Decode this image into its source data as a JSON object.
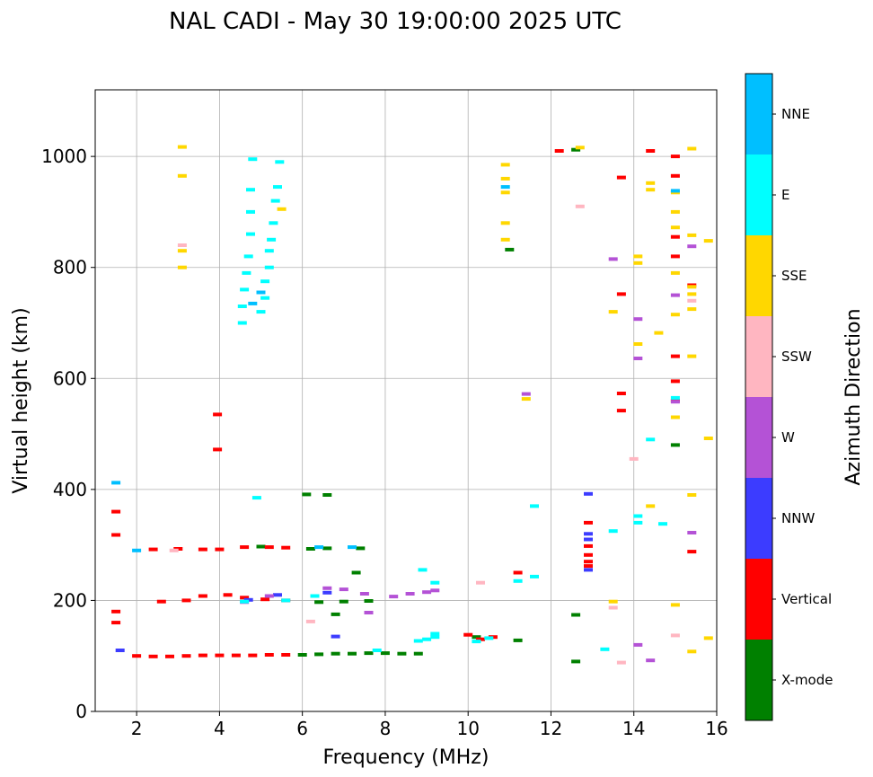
{
  "chart_data": {
    "type": "scatter",
    "title": "NAL CADI - May 30 19:00:00 2025 UTC",
    "xlabel": "Frequency (MHz)",
    "ylabel": "Virtual height (km)",
    "xlim": [
      1.0,
      16.0
    ],
    "ylim": [
      0,
      1120
    ],
    "xticks": [
      2,
      4,
      6,
      8,
      10,
      12,
      14,
      16
    ],
    "yticks": [
      0,
      200,
      400,
      600,
      800,
      1000
    ],
    "grid": true,
    "colorbar": {
      "label": "Azimuth Direction",
      "categories": [
        {
          "name": "X-mode",
          "color": "#008000"
        },
        {
          "name": "Vertical",
          "color": "#ff0000"
        },
        {
          "name": "NNW",
          "color": "#3c3cff"
        },
        {
          "name": "W",
          "color": "#b452d6"
        },
        {
          "name": "SSW",
          "color": "#ffb6c1"
        },
        {
          "name": "SSE",
          "color": "#ffd700"
        },
        {
          "name": "E",
          "color": "#00ffff"
        },
        {
          "name": "NNE",
          "color": "#00bfff"
        }
      ]
    },
    "series": [
      {
        "name": "X-mode",
        "points": [
          [
            6.0,
            102
          ],
          [
            6.4,
            103
          ],
          [
            6.8,
            104
          ],
          [
            7.2,
            104
          ],
          [
            7.6,
            105
          ],
          [
            8.0,
            105
          ],
          [
            8.4,
            104
          ],
          [
            8.8,
            104
          ],
          [
            6.2,
            293
          ],
          [
            6.6,
            294
          ],
          [
            7.4,
            294
          ],
          [
            6.4,
            197
          ],
          [
            7.0,
            198
          ],
          [
            7.6,
            199
          ],
          [
            6.6,
            390
          ],
          [
            6.1,
            391
          ],
          [
            11.0,
            832
          ],
          [
            12.6,
            1012
          ],
          [
            12.6,
            174
          ],
          [
            12.6,
            90
          ],
          [
            10.2,
            134
          ],
          [
            11.2,
            128
          ],
          [
            15.0,
            480
          ],
          [
            7.3,
            250
          ],
          [
            6.8,
            175
          ],
          [
            5.0,
            297
          ]
        ]
      },
      {
        "name": "Vertical",
        "points": [
          [
            2.0,
            100
          ],
          [
            2.4,
            99
          ],
          [
            2.8,
            99
          ],
          [
            3.2,
            100
          ],
          [
            3.6,
            101
          ],
          [
            4.0,
            101
          ],
          [
            4.4,
            101
          ],
          [
            4.8,
            101
          ],
          [
            5.2,
            102
          ],
          [
            5.6,
            102
          ],
          [
            2.4,
            292
          ],
          [
            3.0,
            293
          ],
          [
            3.6,
            292
          ],
          [
            4.0,
            292
          ],
          [
            4.6,
            296
          ],
          [
            5.2,
            296
          ],
          [
            5.6,
            295
          ],
          [
            2.6,
            198
          ],
          [
            3.2,
            200
          ],
          [
            3.6,
            208
          ],
          [
            4.2,
            210
          ],
          [
            4.6,
            205
          ],
          [
            5.1,
            202
          ],
          [
            5.6,
            200
          ],
          [
            1.5,
            360
          ],
          [
            1.5,
            318
          ],
          [
            1.5,
            180
          ],
          [
            1.5,
            160
          ],
          [
            3.95,
            535
          ],
          [
            3.95,
            472
          ],
          [
            10.0,
            138
          ],
          [
            10.3,
            130
          ],
          [
            10.6,
            134
          ],
          [
            11.2,
            250
          ],
          [
            12.9,
            340
          ],
          [
            12.9,
            298
          ],
          [
            12.9,
            282
          ],
          [
            12.9,
            270
          ],
          [
            12.9,
            262
          ],
          [
            13.7,
            752
          ],
          [
            13.7,
            573
          ],
          [
            13.7,
            542
          ],
          [
            13.7,
            962
          ],
          [
            14.4,
            1010
          ],
          [
            15.0,
            1000
          ],
          [
            15.0,
            965
          ],
          [
            15.0,
            855
          ],
          [
            15.0,
            820
          ],
          [
            15.0,
            640
          ],
          [
            15.0,
            595
          ],
          [
            15.0,
            560
          ],
          [
            15.4,
            768
          ],
          [
            15.4,
            288
          ],
          [
            12.2,
            1010
          ]
        ]
      },
      {
        "name": "NNW",
        "points": [
          [
            12.9,
            392
          ],
          [
            12.9,
            320
          ],
          [
            12.9,
            310
          ],
          [
            12.9,
            255
          ],
          [
            6.8,
            135
          ],
          [
            5.4,
            210
          ],
          [
            6.6,
            214
          ],
          [
            4.7,
            201
          ],
          [
            1.6,
            110
          ]
        ]
      },
      {
        "name": "W",
        "points": [
          [
            8.6,
            212
          ],
          [
            9.0,
            215
          ],
          [
            9.2,
            218
          ],
          [
            8.2,
            207
          ],
          [
            7.5,
            212
          ],
          [
            6.6,
            222
          ],
          [
            7.0,
            220
          ],
          [
            5.2,
            208
          ],
          [
            4.6,
            197
          ],
          [
            11.4,
            572
          ],
          [
            13.5,
            815
          ],
          [
            14.1,
            707
          ],
          [
            14.1,
            636
          ],
          [
            14.1,
            120
          ],
          [
            14.4,
            92
          ],
          [
            15.0,
            750
          ],
          [
            15.0,
            558
          ],
          [
            15.4,
            838
          ],
          [
            15.4,
            322
          ],
          [
            7.6,
            178
          ]
        ]
      },
      {
        "name": "SSW",
        "points": [
          [
            2.9,
            290
          ],
          [
            10.3,
            232
          ],
          [
            12.7,
            910
          ],
          [
            13.5,
            187
          ],
          [
            13.7,
            88
          ],
          [
            14.0,
            455
          ],
          [
            15.0,
            137
          ],
          [
            15.4,
            740
          ],
          [
            6.2,
            162
          ],
          [
            3.1,
            840
          ]
        ]
      },
      {
        "name": "SSE",
        "points": [
          [
            3.1,
            965
          ],
          [
            3.1,
            1017
          ],
          [
            3.1,
            830
          ],
          [
            3.1,
            800
          ],
          [
            10.9,
            985
          ],
          [
            10.9,
            960
          ],
          [
            10.9,
            935
          ],
          [
            10.9,
            880
          ],
          [
            10.9,
            850
          ],
          [
            12.7,
            1016
          ],
          [
            13.5,
            720
          ],
          [
            13.5,
            198
          ],
          [
            14.1,
            820
          ],
          [
            14.1,
            808
          ],
          [
            14.1,
            662
          ],
          [
            14.4,
            952
          ],
          [
            14.4,
            940
          ],
          [
            14.4,
            370
          ],
          [
            14.6,
            682
          ],
          [
            15.0,
            935
          ],
          [
            15.0,
            900
          ],
          [
            15.0,
            872
          ],
          [
            15.0,
            790
          ],
          [
            15.0,
            715
          ],
          [
            15.0,
            530
          ],
          [
            15.0,
            192
          ],
          [
            15.4,
            1014
          ],
          [
            15.4,
            858
          ],
          [
            15.4,
            765
          ],
          [
            15.4,
            752
          ],
          [
            15.4,
            725
          ],
          [
            15.4,
            640
          ],
          [
            15.4,
            390
          ],
          [
            15.4,
            108
          ],
          [
            15.8,
            848
          ],
          [
            15.8,
            492
          ],
          [
            15.8,
            132
          ],
          [
            11.4,
            563
          ],
          [
            5.5,
            905
          ]
        ]
      },
      {
        "name": "E",
        "points": [
          [
            4.55,
            700
          ],
          [
            4.55,
            730
          ],
          [
            4.6,
            760
          ],
          [
            4.65,
            790
          ],
          [
            4.7,
            820
          ],
          [
            4.75,
            860
          ],
          [
            4.75,
            900
          ],
          [
            4.75,
            940
          ],
          [
            4.8,
            995
          ],
          [
            5.0,
            720
          ],
          [
            5.1,
            745
          ],
          [
            5.1,
            775
          ],
          [
            5.2,
            800
          ],
          [
            5.2,
            830
          ],
          [
            5.25,
            850
          ],
          [
            5.3,
            880
          ],
          [
            5.35,
            920
          ],
          [
            5.4,
            945
          ],
          [
            5.45,
            990
          ],
          [
            8.8,
            127
          ],
          [
            9.0,
            130
          ],
          [
            9.2,
            134
          ],
          [
            9.2,
            140
          ],
          [
            10.2,
            126
          ],
          [
            10.5,
            132
          ],
          [
            11.6,
            243
          ],
          [
            11.6,
            370
          ],
          [
            11.2,
            235
          ],
          [
            13.5,
            325
          ],
          [
            13.3,
            112
          ],
          [
            14.1,
            352
          ],
          [
            14.1,
            340
          ],
          [
            14.4,
            490
          ],
          [
            14.7,
            338
          ],
          [
            15.0,
            565
          ],
          [
            8.9,
            255
          ],
          [
            9.2,
            232
          ],
          [
            4.6,
            198
          ],
          [
            5.6,
            200
          ],
          [
            6.3,
            208
          ],
          [
            7.8,
            110
          ],
          [
            4.9,
            385
          ]
        ]
      },
      {
        "name": "NNE",
        "points": [
          [
            4.8,
            735
          ],
          [
            5.0,
            755
          ],
          [
            1.5,
            412
          ],
          [
            6.4,
            296
          ],
          [
            7.2,
            296
          ],
          [
            10.9,
            945
          ],
          [
            15.0,
            938
          ],
          [
            2.0,
            290
          ]
        ]
      }
    ]
  }
}
